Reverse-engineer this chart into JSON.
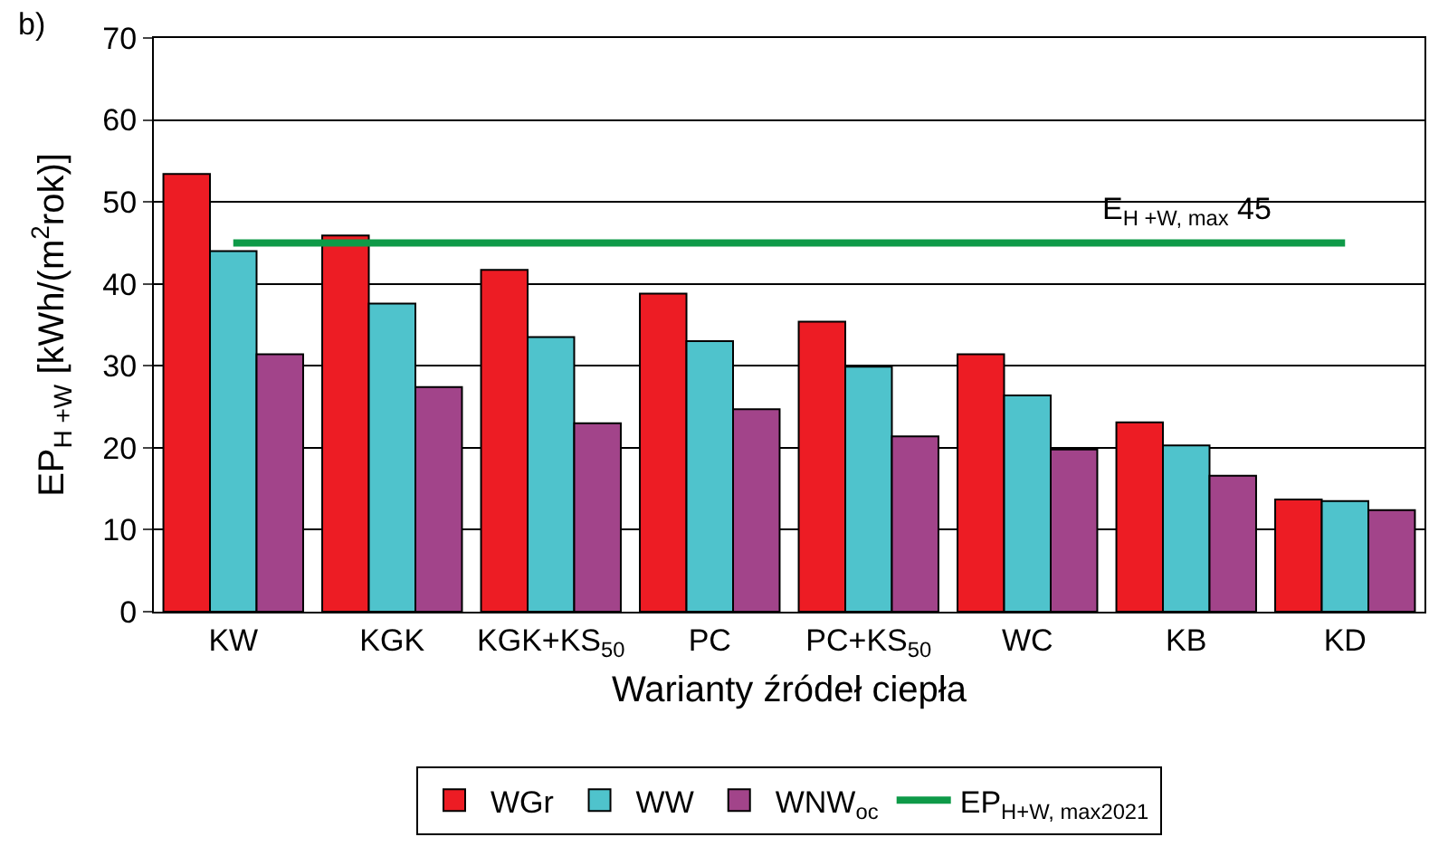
{
  "chart_data": {
    "type": "bar",
    "xlabel": "Warianty źródeł ciepła",
    "ylabel": "EP$_{H +W}$ [kWh/(m$^{2}$rok)]",
    "categories": [
      "KW",
      "KGK",
      "KGK+KS$_{50}$",
      "PC",
      "PC+KS$_{50}$",
      "WC",
      "KB",
      "KD"
    ],
    "series": [
      {
        "name": "WGr",
        "color": "#ed1c24",
        "values": [
          53.4,
          45.9,
          41.7,
          38.8,
          35.4,
          31.4,
          23.1,
          13.7
        ]
      },
      {
        "name": "WW",
        "color": "#4fc3cc",
        "values": [
          44.0,
          37.6,
          33.5,
          33.0,
          29.9,
          26.4,
          20.3,
          13.5
        ]
      },
      {
        "name": "WNW$_{oc}$",
        "color": "#a2448a",
        "values": [
          31.4,
          27.4,
          23.0,
          24.7,
          21.4,
          19.8,
          16.6,
          12.4
        ]
      },
      {
        "name": "EP$_{H+W, max2021}$",
        "type": "line",
        "color": "#0e9a48",
        "values": [
          45,
          45,
          45,
          45,
          45,
          45,
          45,
          45
        ]
      }
    ],
    "annotations": [
      "b)",
      {
        "text": "E$_{H +W, max}$ 45",
        "x": "KB",
        "y": 45
      }
    ],
    "ylim": [
      0,
      70
    ],
    "yticks": [
      0,
      10,
      20,
      30,
      40,
      50,
      60,
      70
    ],
    "grid": "y",
    "legend": "bottom",
    "marker": "none"
  }
}
